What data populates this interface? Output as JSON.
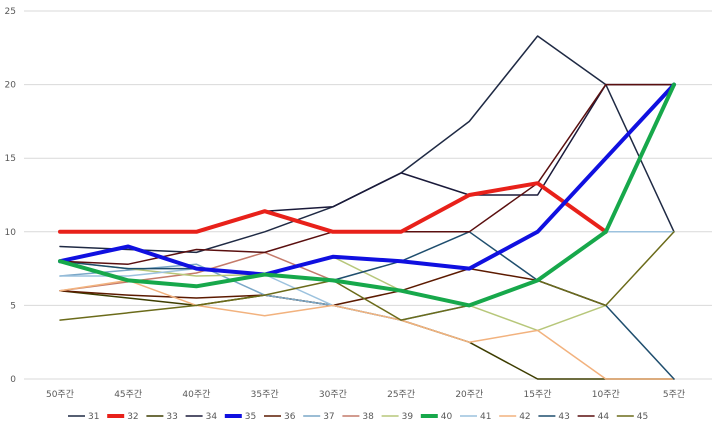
{
  "chart_data": {
    "type": "line",
    "categories": [
      "50주간",
      "45주간",
      "40주간",
      "35주간",
      "30주간",
      "25주간",
      "20주간",
      "15주간",
      "10주간",
      "5주간"
    ],
    "ylim": [
      0,
      25
    ],
    "yticks": [
      0,
      5,
      10,
      15,
      20,
      25
    ],
    "grid": "horizontal",
    "legend_position": "bottom",
    "series": [
      {
        "name": "31",
        "color": "#1f2a44",
        "width": "thin",
        "values": [
          9,
          8.8,
          8.6,
          10,
          11.7,
          14,
          17.5,
          23.3,
          20,
          10
        ]
      },
      {
        "name": "32",
        "color": "#e8211a",
        "width": "thick",
        "values": [
          10,
          10,
          10,
          11.4,
          10,
          10,
          12.5,
          13.3,
          10,
          null
        ]
      },
      {
        "name": "33",
        "color": "#3d3d00",
        "width": "thin",
        "values": [
          6,
          5.5,
          5,
          5.7,
          5,
          4,
          2.5,
          0,
          0,
          0
        ]
      },
      {
        "name": "34",
        "color": "#1a1a3a",
        "width": "thin",
        "values": [
          10,
          10,
          10,
          11.4,
          11.7,
          14,
          12.5,
          12.5,
          20,
          20
        ]
      },
      {
        "name": "35",
        "color": "#1010e0",
        "width": "thick",
        "values": [
          8,
          9,
          7.5,
          7.1,
          8.3,
          8,
          7.5,
          10,
          15,
          20
        ]
      },
      {
        "name": "36",
        "color": "#5c1a00",
        "width": "thin",
        "values": [
          6,
          5.7,
          5.5,
          5.7,
          5,
          6,
          7.5,
          6.7,
          5,
          null
        ]
      },
      {
        "name": "37",
        "color": "#7aa7c7",
        "width": "thin",
        "values": [
          7,
          7.4,
          7.8,
          5.7,
          5,
          4,
          5,
          6.7,
          10,
          10
        ]
      },
      {
        "name": "38",
        "color": "#c47a6a",
        "width": "thin",
        "values": [
          6,
          6.6,
          7.2,
          8.6,
          6.7,
          6,
          5,
          6.7,
          5,
          null
        ]
      },
      {
        "name": "39",
        "color": "#b7c77a",
        "width": "thin",
        "values": [
          8,
          7.5,
          7,
          7.1,
          8.3,
          6,
          5,
          3.3,
          5,
          null
        ]
      },
      {
        "name": "40",
        "color": "#17a84b",
        "width": "thick",
        "values": [
          8,
          6.7,
          6.3,
          7.1,
          6.7,
          6,
          5,
          6.7,
          10,
          20
        ]
      },
      {
        "name": "41",
        "color": "#9cc2de",
        "width": "thin",
        "values": [
          7,
          7,
          7.5,
          7.1,
          5,
          4,
          5,
          6.7,
          10,
          10
        ]
      },
      {
        "name": "42",
        "color": "#f2b27e",
        "width": "thin",
        "values": [
          6,
          6.7,
          5,
          4.3,
          5,
          4,
          2.5,
          3.3,
          0,
          0
        ]
      },
      {
        "name": "43",
        "color": "#1f4e6e",
        "width": "thin",
        "values": [
          8,
          7.5,
          7.5,
          7.1,
          6.7,
          8,
          10,
          6.7,
          5,
          0
        ]
      },
      {
        "name": "44",
        "color": "#5a0f0f",
        "width": "thin",
        "values": [
          8,
          7.8,
          8.8,
          8.6,
          10,
          10,
          10,
          13.3,
          20,
          20
        ]
      },
      {
        "name": "45",
        "color": "#6b6b1a",
        "width": "thin",
        "values": [
          4,
          4.5,
          5,
          5.7,
          6.7,
          4,
          5,
          6.7,
          5,
          10
        ]
      }
    ]
  }
}
